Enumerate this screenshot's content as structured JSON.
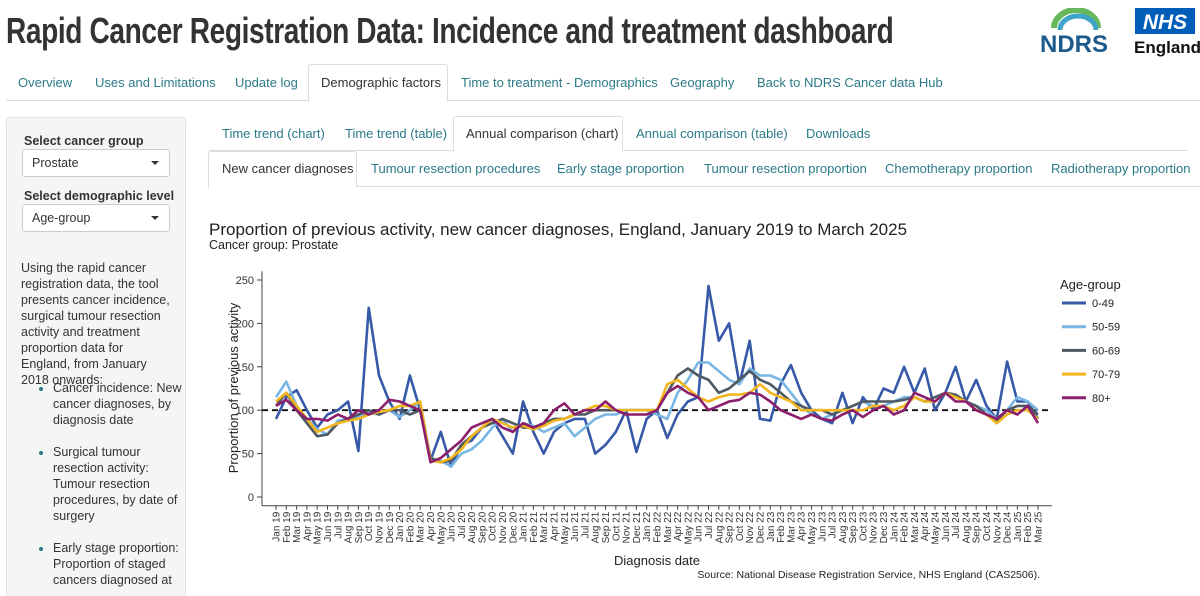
{
  "header": {
    "title": "Rapid Cancer Registration Data: Incidence and treatment dashboard",
    "logo_ndrs": "NDRS",
    "logo_nhs": "NHS",
    "logo_england": "England"
  },
  "nav": [
    "Overview",
    "Uses and Limitations",
    "Update log",
    "Demographic factors",
    "Time to treatment - Demographics",
    "Geography",
    "Back to NDRS Cancer data Hub"
  ],
  "sidebar": {
    "cancer_group_label": "Select cancer group",
    "cancer_group": "Prostate",
    "demographic_label": "Select demographic level",
    "demographic": "Age-group",
    "intro": "Using the rapid cancer registration data, the tool presents cancer incidence, surgical tumour resection activity and treatment proportion data for England, from January 2018 onwards:",
    "bullets": [
      "Cancer incidence: New cancer diagnoses, by diagnosis date",
      "Surgical tumour resection activity: Tumour resection procedures, by date of surgery",
      "Early stage proportion: Proportion of staged cancers diagnosed at"
    ]
  },
  "tabs": [
    "Time trend (chart)",
    "Time trend (table)",
    "Annual comparison (chart)",
    "Annual comparison (table)",
    "Downloads"
  ],
  "subtabs": [
    "New cancer diagnoses",
    "Tumour resection procedures",
    "Early stage proportion",
    "Tumour resection proportion",
    "Chemotherapy proportion",
    "Radiotherapy proportion"
  ],
  "chart_data": {
    "type": "line",
    "title": "Proportion of previous activity, new cancer diagnoses, England, January 2019 to March 2025",
    "subtitle": "Cancer group: Prostate",
    "x_label": "Diagnosis date",
    "y_label": "Proportion of previous activity",
    "source": "Source: National Disease Registration Service, NHS England (CAS2506).",
    "legend_title": "Age-group",
    "legend_position": "right",
    "reference_line": 100,
    "ylim": [
      -10,
      260
    ],
    "yticks": [
      0,
      50,
      100,
      150,
      200,
      250
    ],
    "categories": [
      "Jan 19",
      "Feb 19",
      "Mar 19",
      "Apr 19",
      "May 19",
      "Jun 19",
      "Jul 19",
      "Aug 19",
      "Sep 19",
      "Oct 19",
      "Nov 19",
      "Dec 19",
      "Jan 20",
      "Feb 20",
      "Mar 20",
      "Apr 20",
      "May 20",
      "Jun 20",
      "Jul 20",
      "Aug 20",
      "Sep 20",
      "Oct 20",
      "Nov 20",
      "Dec 20",
      "Jan 21",
      "Feb 21",
      "Mar 21",
      "Apr 21",
      "May 21",
      "Jun 21",
      "Jul 21",
      "Aug 21",
      "Sep 21",
      "Oct 21",
      "Nov 21",
      "Dec 21",
      "Jan 22",
      "Feb 22",
      "Mar 22",
      "Apr 22",
      "May 22",
      "Jun 22",
      "Jul 22",
      "Aug 22",
      "Sep 22",
      "Oct 22",
      "Nov 22",
      "Dec 22",
      "Jan 23",
      "Feb 23",
      "Mar 23",
      "Apr 23",
      "May 23",
      "Jun 23",
      "Jul 23",
      "Aug 23",
      "Sep 23",
      "Oct 23",
      "Nov 23",
      "Dec 23",
      "Jan 24",
      "Feb 24",
      "Mar 24",
      "Apr 24",
      "May 24",
      "Jun 24",
      "Jul 24",
      "Aug 24",
      "Sep 24",
      "Oct 24",
      "Nov 24",
      "Dec 24",
      "Jan 25",
      "Feb 25",
      "Mar 25"
    ],
    "series": [
      {
        "name": "0-49",
        "color": "#3659a8",
        "values": [
          90,
          115,
          123,
          100,
          80,
          95,
          100,
          110,
          53,
          218,
          140,
          110,
          90,
          140,
          100,
          42,
          75,
          35,
          60,
          65,
          80,
          90,
          70,
          50,
          110,
          75,
          50,
          75,
          85,
          90,
          90,
          50,
          60,
          75,
          100,
          52,
          90,
          100,
          68,
          95,
          110,
          115,
          243,
          180,
          200,
          130,
          180,
          90,
          88,
          130,
          152,
          120,
          100,
          90,
          85,
          120,
          85,
          115,
          100,
          125,
          120,
          150,
          120,
          148,
          100,
          120,
          150,
          110,
          135,
          105,
          90,
          156,
          110,
          110,
          90
        ]
      },
      {
        "name": "50-59",
        "color": "#7ab6e4",
        "values": [
          115,
          133,
          105,
          90,
          78,
          72,
          88,
          90,
          92,
          97,
          95,
          100,
          92,
          100,
          110,
          45,
          42,
          35,
          50,
          55,
          65,
          80,
          90,
          75,
          85,
          82,
          75,
          80,
          85,
          70,
          80,
          90,
          95,
          95,
          100,
          100,
          100,
          95,
          90,
          120,
          135,
          155,
          155,
          145,
          135,
          130,
          148,
          140,
          140,
          135,
          120,
          105,
          95,
          90,
          95,
          100,
          105,
          110,
          105,
          105,
          110,
          115,
          115,
          110,
          110,
          120,
          115,
          110,
          105,
          100,
          90,
          100,
          115,
          110,
          100
        ]
      },
      {
        "name": "60-69",
        "color": "#4d5862",
        "values": [
          105,
          120,
          100,
          85,
          70,
          72,
          85,
          90,
          95,
          100,
          95,
          100,
          100,
          95,
          100,
          45,
          40,
          42,
          60,
          70,
          80,
          85,
          90,
          85,
          80,
          80,
          85,
          90,
          90,
          95,
          95,
          100,
          100,
          100,
          100,
          100,
          100,
          100,
          120,
          140,
          148,
          140,
          135,
          120,
          125,
          135,
          145,
          135,
          130,
          120,
          110,
          105,
          100,
          100,
          95,
          100,
          105,
          110,
          110,
          110,
          110,
          112,
          115,
          110,
          115,
          120,
          118,
          110,
          105,
          95,
          88,
          100,
          105,
          105,
          95
        ]
      },
      {
        "name": "70-79",
        "color": "#f2b61c",
        "values": [
          110,
          120,
          105,
          90,
          75,
          80,
          85,
          88,
          90,
          95,
          98,
          100,
          105,
          105,
          110,
          42,
          40,
          45,
          55,
          70,
          80,
          90,
          85,
          80,
          82,
          78,
          82,
          88,
          90,
          95,
          100,
          105,
          105,
          100,
          100,
          100,
          100,
          100,
          130,
          135,
          125,
          115,
          110,
          115,
          118,
          118,
          120,
          130,
          120,
          115,
          110,
          100,
          100,
          100,
          100,
          100,
          100,
          100,
          105,
          105,
          100,
          105,
          115,
          110,
          110,
          120,
          115,
          110,
          100,
          95,
          85,
          95,
          100,
          100,
          90
        ]
      },
      {
        "name": "80+",
        "color": "#8c1f6c",
        "values": [
          105,
          112,
          100,
          90,
          90,
          88,
          95,
          90,
          100,
          95,
          100,
          112,
          110,
          105,
          100,
          40,
          45,
          55,
          65,
          80,
          85,
          90,
          80,
          75,
          85,
          80,
          85,
          100,
          108,
          95,
          100,
          100,
          110,
          100,
          95,
          95,
          95,
          100,
          120,
          128,
          120,
          115,
          100,
          105,
          110,
          112,
          120,
          118,
          110,
          100,
          95,
          90,
          95,
          90,
          88,
          95,
          100,
          92,
          100,
          105,
          95,
          100,
          120,
          115,
          110,
          120,
          110,
          110,
          100,
          95,
          90,
          100,
          95,
          105,
          85
        ]
      }
    ]
  }
}
